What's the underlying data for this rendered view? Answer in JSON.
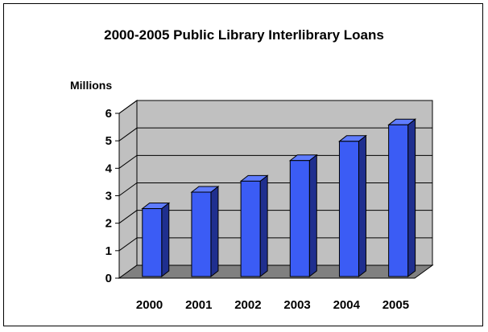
{
  "chart_data": {
    "type": "bar",
    "title": "2000-2005 Public Library Interlibrary Loans",
    "ylabel": "Millions",
    "xlabel": "",
    "categories": [
      "2000",
      "2001",
      "2002",
      "2003",
      "2004",
      "2005"
    ],
    "values": [
      2.4,
      3.0,
      3.4,
      4.15,
      4.85,
      5.45
    ],
    "ylim": [
      0,
      6
    ],
    "yticks": [
      0,
      1,
      2,
      3,
      4,
      5,
      6
    ],
    "grid": true,
    "legend": "none",
    "colors": {
      "bar_front": "#3b5cf5",
      "bar_side": "#1f2f8f",
      "bar_top": "#5f7cff",
      "wall": "#c0c0c0",
      "floor": "#808080"
    }
  }
}
